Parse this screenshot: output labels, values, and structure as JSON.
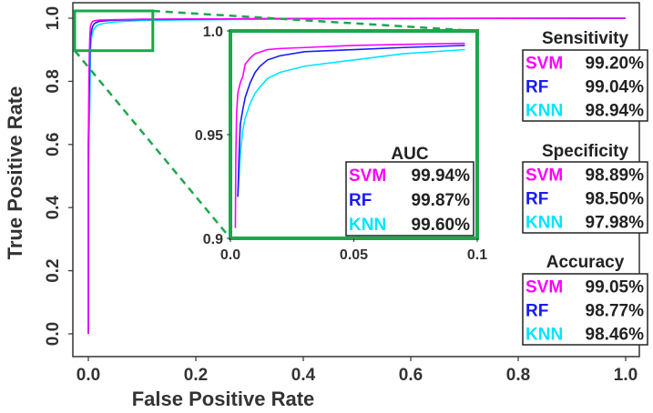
{
  "chart_data": [
    {
      "type": "line",
      "xlabel": "False Positive Rate",
      "ylabel": "True Positive Rate",
      "xlim": [
        0,
        1
      ],
      "ylim": [
        0,
        1
      ],
      "xticks": [
        "0.0",
        "0.2",
        "0.4",
        "0.6",
        "0.8",
        "1.0"
      ],
      "yticks": [
        "0.0",
        "0.2",
        "0.4",
        "0.6",
        "0.8",
        "1.0"
      ],
      "grid": false,
      "series": [
        {
          "name": "SVM",
          "color": "#ff00ff",
          "x": [
            0,
            0,
            0.001,
            0.002,
            0.003,
            0.004,
            0.006,
            0.008,
            0.012,
            0.02,
            0.04,
            0.1,
            0.4,
            1.0
          ],
          "y": [
            0,
            0.6,
            0.8,
            0.9,
            0.95,
            0.975,
            0.985,
            0.99,
            0.992,
            0.994,
            0.995,
            0.997,
            0.999,
            1.0
          ]
        },
        {
          "name": "RF",
          "color": "#1a1aff",
          "x": [
            0,
            0,
            0.002,
            0.003,
            0.004,
            0.006,
            0.008,
            0.012,
            0.02,
            0.04,
            0.1,
            0.4,
            1.0
          ],
          "y": [
            0,
            0.6,
            0.8,
            0.9,
            0.94,
            0.96,
            0.975,
            0.984,
            0.99,
            0.993,
            0.996,
            0.999,
            1.0
          ]
        },
        {
          "name": "KNN",
          "color": "#00e5ff",
          "x": [
            0,
            0,
            0.003,
            0.004,
            0.006,
            0.01,
            0.015,
            0.02,
            0.03,
            0.05,
            0.1,
            0.4,
            1.0
          ],
          "y": [
            0,
            0.5,
            0.75,
            0.9,
            0.94,
            0.965,
            0.975,
            0.98,
            0.984,
            0.988,
            0.993,
            0.998,
            1.0
          ]
        }
      ]
    },
    {
      "type": "line",
      "xlim": [
        0,
        0.1
      ],
      "ylim": [
        0.9,
        1.0
      ],
      "xticks": [
        "0.0",
        "0.05",
        "0.1"
      ],
      "yticks": [
        "0.9",
        "0.95",
        "1.0"
      ],
      "series": [
        {
          "name": "SVM",
          "color": "#ff00ff",
          "x": [
            0.002,
            0.0022,
            0.0025,
            0.003,
            0.004,
            0.005,
            0.006,
            0.008,
            0.01,
            0.015,
            0.02,
            0.03,
            0.05,
            0.07,
            0.095
          ],
          "y": [
            0.905,
            0.94,
            0.96,
            0.97,
            0.975,
            0.978,
            0.984,
            0.987,
            0.989,
            0.991,
            0.9915,
            0.992,
            0.993,
            0.9935,
            0.994
          ]
        },
        {
          "name": "RF",
          "color": "#1a1aff",
          "x": [
            0.003,
            0.0035,
            0.004,
            0.005,
            0.006,
            0.008,
            0.01,
            0.012,
            0.015,
            0.02,
            0.03,
            0.05,
            0.07,
            0.095
          ],
          "y": [
            0.92,
            0.94,
            0.955,
            0.962,
            0.968,
            0.975,
            0.98,
            0.983,
            0.986,
            0.988,
            0.99,
            0.991,
            0.992,
            0.993
          ]
        },
        {
          "name": "KNN",
          "color": "#00e5ff",
          "x": [
            0.003,
            0.004,
            0.005,
            0.006,
            0.008,
            0.01,
            0.012,
            0.015,
            0.02,
            0.03,
            0.05,
            0.07,
            0.095
          ],
          "y": [
            0.92,
            0.94,
            0.952,
            0.958,
            0.965,
            0.97,
            0.973,
            0.977,
            0.98,
            0.983,
            0.986,
            0.989,
            0.991
          ]
        }
      ]
    }
  ],
  "auc_table": {
    "title": "AUC",
    "rows": [
      {
        "model": "SVM",
        "value": "99.94%",
        "color": "#ff00ff"
      },
      {
        "model": "RF",
        "value": "99.87%",
        "color": "#1a1aff"
      },
      {
        "model": "KNN",
        "value": "99.60%",
        "color": "#00e5ff"
      }
    ]
  },
  "metric_tables": [
    {
      "title": "Sensitivity",
      "rows": [
        {
          "model": "SVM",
          "value": "99.20%",
          "color": "#ff00ff"
        },
        {
          "model": "RF",
          "value": "99.04%",
          "color": "#1a1aff"
        },
        {
          "model": "KNN",
          "value": "98.94%",
          "color": "#00e5ff"
        }
      ]
    },
    {
      "title": "Specificity",
      "rows": [
        {
          "model": "SVM",
          "value": "98.89%",
          "color": "#ff00ff"
        },
        {
          "model": "RF",
          "value": "98.50%",
          "color": "#1a1aff"
        },
        {
          "model": "KNN",
          "value": "97.98%",
          "color": "#00e5ff"
        }
      ]
    },
    {
      "title": "Accuracy",
      "rows": [
        {
          "model": "SVM",
          "value": "99.05%",
          "color": "#ff00ff"
        },
        {
          "model": "RF",
          "value": "98.77%",
          "color": "#1a1aff"
        },
        {
          "model": "KNN",
          "value": "98.46%",
          "color": "#00e5ff"
        }
      ]
    }
  ],
  "zoom_box": {
    "x": [
      0,
      0.12
    ],
    "y": [
      0.9,
      1.0
    ],
    "color": "#1aa84a"
  }
}
